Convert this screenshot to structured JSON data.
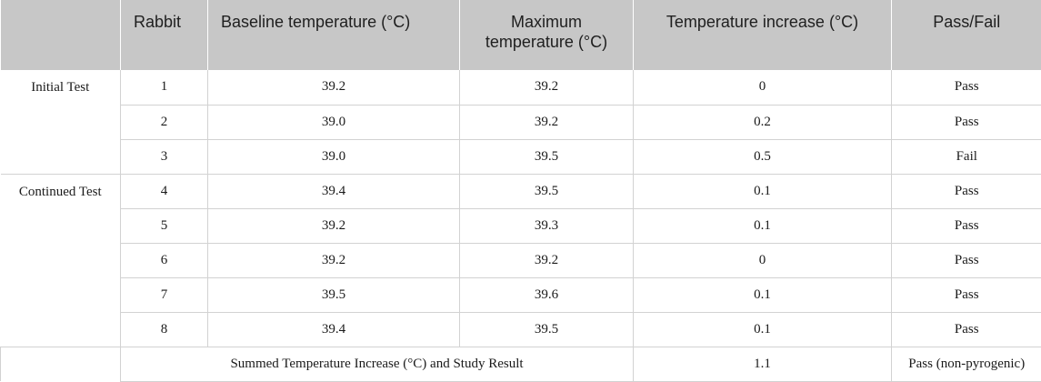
{
  "headers": {
    "col0": "",
    "rabbit": "Rabbit",
    "baseline": "Baseline temperature (°C)",
    "maximum": "Maximum temperature (°C)",
    "increase": "Temperature increase (°C)",
    "passfail": "Pass/Fail"
  },
  "groups": {
    "initial": "Initial Test",
    "continued": "Continued Test"
  },
  "rows": [
    {
      "rabbit": "1",
      "baseline": "39.2",
      "maximum": "39.2",
      "increase": "0",
      "result": "Pass"
    },
    {
      "rabbit": "2",
      "baseline": "39.0",
      "maximum": "39.2",
      "increase": "0.2",
      "result": "Pass"
    },
    {
      "rabbit": "3",
      "baseline": "39.0",
      "maximum": "39.5",
      "increase": "0.5",
      "result": "Fail"
    },
    {
      "rabbit": "4",
      "baseline": "39.4",
      "maximum": "39.5",
      "increase": "0.1",
      "result": "Pass"
    },
    {
      "rabbit": "5",
      "baseline": "39.2",
      "maximum": "39.3",
      "increase": "0.1",
      "result": "Pass"
    },
    {
      "rabbit": "6",
      "baseline": "39.2",
      "maximum": "39.2",
      "increase": "0",
      "result": "Pass"
    },
    {
      "rabbit": "7",
      "baseline": "39.5",
      "maximum": "39.6",
      "increase": "0.1",
      "result": "Pass"
    },
    {
      "rabbit": "8",
      "baseline": "39.4",
      "maximum": "39.5",
      "increase": "0.1",
      "result": "Pass"
    }
  ],
  "summary": {
    "label": "Summed Temperature Increase (°C) and Study Result",
    "total": "1.1",
    "result": "Pass (non-pyrogenic)"
  }
}
